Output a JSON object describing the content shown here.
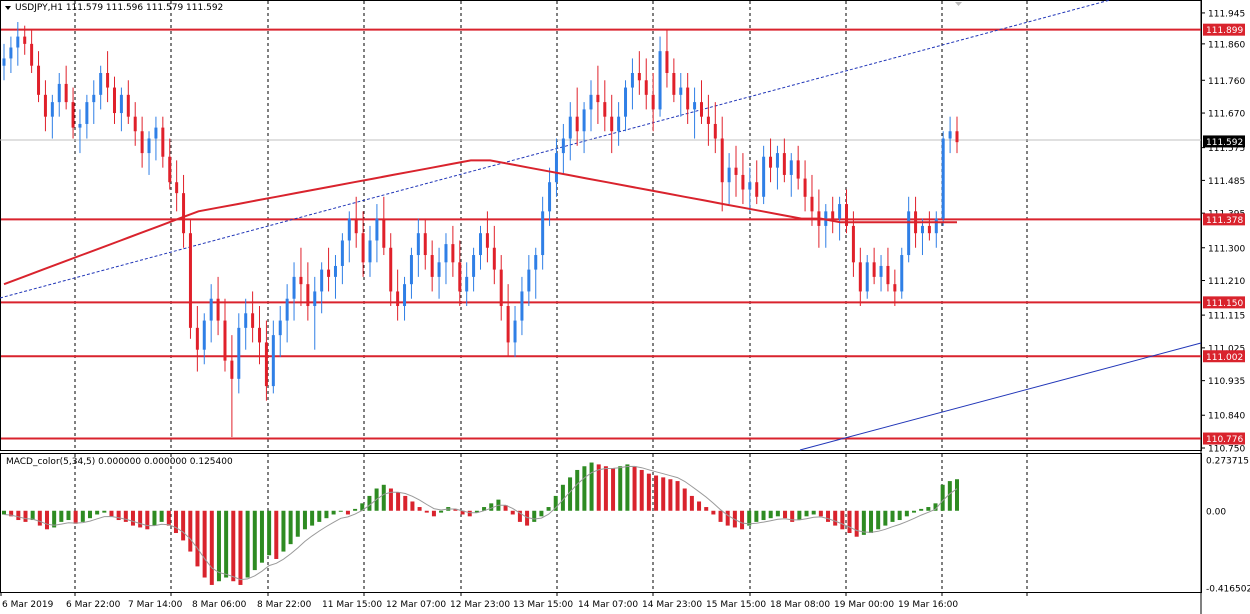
{
  "main_panel": {
    "header": "USDJPY,H1  111.579 111.596 111.579 111.592",
    "price_ticks": [
      "111.945",
      "111.860",
      "111.760",
      "111.670",
      "111.575",
      "111.485",
      "111.395",
      "111.300",
      "111.210",
      "111.115",
      "111.025",
      "110.935",
      "110.840",
      "110.750"
    ],
    "current_price_label": "111.592",
    "levels": [
      {
        "label": "111.899",
        "price": 111.899
      },
      {
        "label": "111.378",
        "price": 111.378
      },
      {
        "label": "111.150",
        "price": 111.15
      },
      {
        "label": "111.002",
        "price": 111.002
      },
      {
        "label": "110.776",
        "price": 110.776
      }
    ],
    "level_color": "#d9232d",
    "bull_color": "#2f7fe6",
    "bear_color": "#e0202a",
    "ma_color": "#d9232d",
    "trend_color": "#2136b8"
  },
  "macd_panel": {
    "header": "MACD_color(5,34,5) 0.000000 0.000000 0.125400",
    "ticks": [
      "0.273715",
      "0.00",
      "-0.416502"
    ],
    "pos_color": "#2e8b22",
    "neg_color": "#d9232d"
  },
  "time_labels": [
    "6 Mar 2019",
    "6 Mar 22:00",
    "7 Mar 14:00",
    "8 Mar 06:00",
    "8 Mar 22:00",
    "11 Mar 15:00",
    "12 Mar 07:00",
    "12 Mar 23:00",
    "13 Mar 15:00",
    "14 Mar 07:00",
    "14 Mar 23:00",
    "15 Mar 15:00",
    "18 Mar 08:00",
    "19 Mar 00:00",
    "19 Mar 16:00"
  ],
  "chart_data": {
    "type": "candlestick",
    "symbol": "USDJPY",
    "timeframe": "H1",
    "ylim": [
      110.75,
      111.975
    ],
    "candles_ohlc": [
      [
        111.8,
        111.86,
        111.76,
        111.82
      ],
      [
        111.82,
        111.88,
        111.78,
        111.85
      ],
      [
        111.85,
        111.92,
        111.8,
        111.88
      ],
      [
        111.88,
        111.91,
        111.83,
        111.86
      ],
      [
        111.86,
        111.9,
        111.78,
        111.8
      ],
      [
        111.8,
        111.84,
        111.7,
        111.72
      ],
      [
        111.72,
        111.76,
        111.62,
        111.66
      ],
      [
        111.66,
        111.72,
        111.6,
        111.7
      ],
      [
        111.7,
        111.78,
        111.66,
        111.75
      ],
      [
        111.75,
        111.8,
        111.68,
        111.7
      ],
      [
        111.7,
        111.74,
        111.6,
        111.63
      ],
      [
        111.63,
        111.68,
        111.56,
        111.64
      ],
      [
        111.64,
        111.72,
        111.6,
        111.7
      ],
      [
        111.7,
        111.76,
        111.64,
        111.72
      ],
      [
        111.72,
        111.8,
        111.68,
        111.78
      ],
      [
        111.78,
        111.84,
        111.7,
        111.74
      ],
      [
        111.74,
        111.77,
        111.64,
        111.67
      ],
      [
        111.67,
        111.74,
        111.62,
        111.72
      ],
      [
        111.72,
        111.76,
        111.64,
        111.66
      ],
      [
        111.66,
        111.7,
        111.58,
        111.62
      ],
      [
        111.62,
        111.66,
        111.52,
        111.56
      ],
      [
        111.56,
        111.62,
        111.5,
        111.6
      ],
      [
        111.6,
        111.66,
        111.54,
        111.63
      ],
      [
        111.63,
        111.66,
        111.52,
        111.55
      ],
      [
        111.55,
        111.6,
        111.46,
        111.48
      ],
      [
        111.48,
        111.54,
        111.4,
        111.45
      ],
      [
        111.45,
        111.5,
        111.3,
        111.34
      ],
      [
        111.34,
        111.38,
        111.05,
        111.08
      ],
      [
        111.08,
        111.14,
        110.96,
        111.02
      ],
      [
        111.02,
        111.12,
        110.98,
        111.1
      ],
      [
        111.1,
        111.2,
        111.04,
        111.16
      ],
      [
        111.16,
        111.22,
        111.06,
        111.1
      ],
      [
        111.1,
        111.16,
        110.96,
        110.99
      ],
      [
        110.99,
        111.06,
        110.78,
        110.94
      ],
      [
        110.94,
        111.12,
        110.9,
        111.08
      ],
      [
        111.08,
        111.16,
        111.02,
        111.12
      ],
      [
        111.12,
        111.18,
        111.04,
        111.08
      ],
      [
        111.08,
        111.14,
        110.98,
        111.04
      ],
      [
        111.04,
        111.1,
        110.88,
        110.92
      ],
      [
        110.92,
        111.1,
        110.9,
        111.06
      ],
      [
        111.06,
        111.14,
        111.0,
        111.1
      ],
      [
        111.1,
        111.2,
        111.04,
        111.16
      ],
      [
        111.16,
        111.26,
        111.1,
        111.22
      ],
      [
        111.22,
        111.3,
        111.14,
        111.2
      ],
      [
        111.2,
        111.26,
        111.1,
        111.14
      ],
      [
        111.14,
        111.22,
        111.02,
        111.18
      ],
      [
        111.18,
        111.26,
        111.12,
        111.24
      ],
      [
        111.24,
        111.3,
        111.18,
        111.22
      ],
      [
        111.22,
        111.28,
        111.16,
        111.25
      ],
      [
        111.25,
        111.34,
        111.2,
        111.32
      ],
      [
        111.32,
        111.4,
        111.26,
        111.38
      ],
      [
        111.38,
        111.44,
        111.3,
        111.34
      ],
      [
        111.34,
        111.4,
        111.22,
        111.26
      ],
      [
        111.26,
        111.36,
        111.22,
        111.32
      ],
      [
        111.32,
        111.42,
        111.26,
        111.38
      ],
      [
        111.38,
        111.44,
        111.28,
        111.3
      ],
      [
        111.3,
        111.34,
        111.14,
        111.18
      ],
      [
        111.18,
        111.24,
        111.1,
        111.14
      ],
      [
        111.14,
        111.22,
        111.1,
        111.2
      ],
      [
        111.2,
        111.3,
        111.16,
        111.28
      ],
      [
        111.28,
        111.38,
        111.22,
        111.34
      ],
      [
        111.34,
        111.38,
        111.24,
        111.28
      ],
      [
        111.28,
        111.32,
        111.18,
        111.22
      ],
      [
        111.22,
        111.3,
        111.16,
        111.26
      ],
      [
        111.26,
        111.34,
        111.2,
        111.31
      ],
      [
        111.31,
        111.36,
        111.22,
        111.26
      ],
      [
        111.26,
        111.32,
        111.14,
        111.18
      ],
      [
        111.18,
        111.26,
        111.14,
        111.22
      ],
      [
        111.22,
        111.3,
        111.18,
        111.28
      ],
      [
        111.28,
        111.36,
        111.24,
        111.34
      ],
      [
        111.34,
        111.4,
        111.26,
        111.3
      ],
      [
        111.3,
        111.36,
        111.2,
        111.24
      ],
      [
        111.24,
        111.28,
        111.1,
        111.14
      ],
      [
        111.14,
        111.2,
        111.0,
        111.04
      ],
      [
        111.04,
        111.14,
        111.0,
        111.1
      ],
      [
        111.1,
        111.22,
        111.06,
        111.18
      ],
      [
        111.18,
        111.28,
        111.14,
        111.24
      ],
      [
        111.24,
        111.3,
        111.16,
        111.28
      ],
      [
        111.28,
        111.44,
        111.24,
        111.4
      ],
      [
        111.4,
        111.52,
        111.36,
        111.48
      ],
      [
        111.48,
        111.6,
        111.44,
        111.56
      ],
      [
        111.56,
        111.64,
        111.5,
        111.6
      ],
      [
        111.6,
        111.7,
        111.54,
        111.66
      ],
      [
        111.66,
        111.74,
        111.58,
        111.62
      ],
      [
        111.62,
        111.7,
        111.56,
        111.68
      ],
      [
        111.68,
        111.76,
        111.62,
        111.72
      ],
      [
        111.72,
        111.8,
        111.64,
        111.7
      ],
      [
        111.7,
        111.76,
        111.62,
        111.66
      ],
      [
        111.66,
        111.72,
        111.56,
        111.62
      ],
      [
        111.62,
        111.7,
        111.58,
        111.66
      ],
      [
        111.66,
        111.76,
        111.62,
        111.74
      ],
      [
        111.74,
        111.82,
        111.68,
        111.78
      ],
      [
        111.78,
        111.84,
        111.72,
        111.76
      ],
      [
        111.76,
        111.82,
        111.68,
        111.72
      ],
      [
        111.72,
        111.78,
        111.62,
        111.68
      ],
      [
        111.68,
        111.88,
        111.66,
        111.84
      ],
      [
        111.84,
        111.9,
        111.74,
        111.78
      ],
      [
        111.78,
        111.82,
        111.7,
        111.72
      ],
      [
        111.72,
        111.78,
        111.66,
        111.74
      ],
      [
        111.74,
        111.78,
        111.64,
        111.68
      ],
      [
        111.68,
        111.74,
        111.6,
        111.7
      ],
      [
        111.7,
        111.76,
        111.64,
        111.66
      ],
      [
        111.66,
        111.72,
        111.58,
        111.64
      ],
      [
        111.64,
        111.7,
        111.56,
        111.6
      ],
      [
        111.6,
        111.66,
        111.4,
        111.48
      ],
      [
        111.48,
        111.56,
        111.42,
        111.52
      ],
      [
        111.52,
        111.58,
        111.44,
        111.5
      ],
      [
        111.5,
        111.56,
        111.42,
        111.46
      ],
      [
        111.46,
        111.52,
        111.4,
        111.48
      ],
      [
        111.48,
        111.54,
        111.42,
        111.44
      ],
      [
        111.44,
        111.58,
        111.42,
        111.55
      ],
      [
        111.55,
        111.6,
        111.48,
        111.52
      ],
      [
        111.52,
        111.58,
        111.46,
        111.56
      ],
      [
        111.56,
        111.6,
        111.48,
        111.5
      ],
      [
        111.5,
        111.56,
        111.44,
        111.54
      ],
      [
        111.54,
        111.58,
        111.46,
        111.49
      ],
      [
        111.49,
        111.54,
        111.4,
        111.44
      ],
      [
        111.44,
        111.5,
        111.36,
        111.4
      ],
      [
        111.4,
        111.46,
        111.3,
        111.36
      ],
      [
        111.36,
        111.42,
        111.3,
        111.4
      ],
      [
        111.4,
        111.44,
        111.34,
        111.38
      ],
      [
        111.38,
        111.44,
        111.32,
        111.42
      ],
      [
        111.42,
        111.46,
        111.34,
        111.36
      ],
      [
        111.36,
        111.4,
        111.22,
        111.26
      ],
      [
        111.26,
        111.3,
        111.14,
        111.18
      ],
      [
        111.18,
        111.28,
        111.16,
        111.26
      ],
      [
        111.26,
        111.3,
        111.2,
        111.22
      ],
      [
        111.22,
        111.28,
        111.18,
        111.25
      ],
      [
        111.25,
        111.3,
        111.18,
        111.2
      ],
      [
        111.2,
        111.24,
        111.14,
        111.18
      ],
      [
        111.18,
        111.3,
        111.16,
        111.28
      ],
      [
        111.28,
        111.44,
        111.26,
        111.4
      ],
      [
        111.4,
        111.44,
        111.3,
        111.34
      ],
      [
        111.34,
        111.38,
        111.28,
        111.36
      ],
      [
        111.36,
        111.4,
        111.32,
        111.34
      ],
      [
        111.34,
        111.4,
        111.3,
        111.38
      ],
      [
        111.38,
        111.62,
        111.36,
        111.6
      ],
      [
        111.6,
        111.66,
        111.56,
        111.62
      ],
      [
        111.62,
        111.66,
        111.56,
        111.59
      ]
    ],
    "moving_average": [
      111.2,
      111.22,
      111.24,
      111.26,
      111.28,
      111.3,
      111.32,
      111.34,
      111.36,
      111.38,
      111.4,
      111.41,
      111.42,
      111.43,
      111.44,
      111.45,
      111.46,
      111.47,
      111.48,
      111.49,
      111.5,
      111.51,
      111.52,
      111.53,
      111.54,
      111.54,
      111.53,
      111.52,
      111.51,
      111.5,
      111.49,
      111.48,
      111.47,
      111.46,
      111.45,
      111.44,
      111.43,
      111.42,
      111.41,
      111.4,
      111.39,
      111.38,
      111.38,
      111.37,
      111.37,
      111.37,
      111.37,
      111.37,
      111.37,
      111.37
    ],
    "macd_histogram": [
      -0.02,
      -0.03,
      -0.05,
      -0.06,
      -0.05,
      -0.08,
      -0.1,
      -0.09,
      -0.06,
      -0.05,
      -0.07,
      -0.06,
      -0.04,
      -0.02,
      -0.01,
      -0.03,
      -0.05,
      -0.06,
      -0.08,
      -0.09,
      -0.1,
      -0.08,
      -0.06,
      -0.08,
      -0.12,
      -0.16,
      -0.22,
      -0.3,
      -0.36,
      -0.4,
      -0.38,
      -0.36,
      -0.38,
      -0.4,
      -0.36,
      -0.32,
      -0.28,
      -0.24,
      -0.26,
      -0.22,
      -0.18,
      -0.14,
      -0.1,
      -0.08,
      -0.06,
      -0.04,
      -0.02,
      0.0,
      -0.02,
      0.01,
      0.04,
      0.08,
      0.12,
      0.14,
      0.12,
      0.1,
      0.08,
      0.05,
      0.02,
      -0.01,
      -0.03,
      -0.01,
      0.02,
      0.01,
      -0.02,
      -0.03,
      -0.01,
      0.02,
      0.04,
      0.06,
      0.03,
      -0.02,
      -0.06,
      -0.08,
      -0.06,
      -0.03,
      0.02,
      0.08,
      0.14,
      0.18,
      0.22,
      0.24,
      0.26,
      0.25,
      0.24,
      0.23,
      0.24,
      0.25,
      0.24,
      0.22,
      0.2,
      0.19,
      0.18,
      0.17,
      0.16,
      0.12,
      0.08,
      0.05,
      0.02,
      -0.02,
      -0.06,
      -0.08,
      -0.09,
      -0.1,
      -0.08,
      -0.06,
      -0.05,
      -0.04,
      -0.03,
      -0.04,
      -0.06,
      -0.05,
      -0.03,
      -0.02,
      -0.03,
      -0.06,
      -0.08,
      -0.1,
      -0.12,
      -0.14,
      -0.13,
      -0.12,
      -0.1,
      -0.08,
      -0.06,
      -0.05,
      -0.03,
      -0.01,
      0.01,
      0.02,
      0.04,
      0.14,
      0.16,
      0.17
    ]
  }
}
